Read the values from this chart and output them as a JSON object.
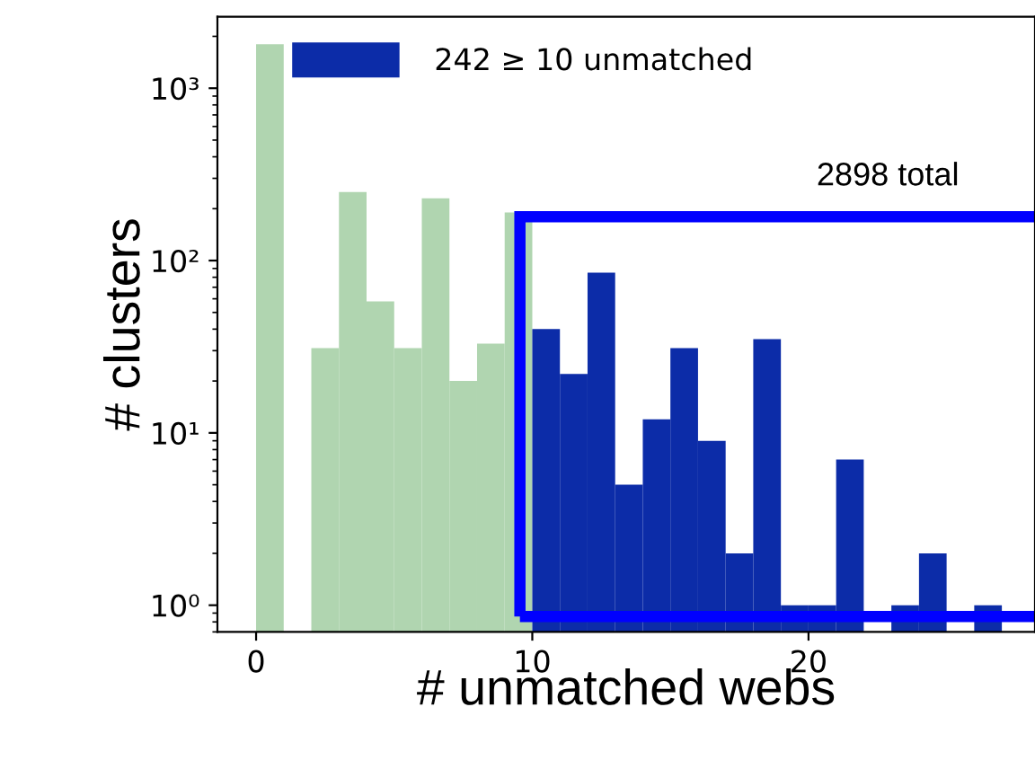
{
  "chart_data": {
    "type": "histogram",
    "xlabel": "# unmatched webs",
    "ylabel": "# clusters",
    "bins": [
      0,
      1,
      2,
      3,
      4,
      5,
      6,
      7,
      8,
      9,
      10,
      11,
      12,
      13,
      14,
      15,
      16,
      17,
      18,
      19,
      20,
      21,
      22,
      23,
      24,
      25,
      26,
      27
    ],
    "series": [
      {
        "color": "#b0d5b0",
        "values": [
          1800,
          null,
          31,
          250,
          58,
          31,
          230,
          20,
          33,
          190,
          null,
          null,
          null,
          null,
          null,
          null,
          null,
          null,
          null,
          null,
          null,
          null,
          null,
          null,
          null,
          null,
          null
        ]
      },
      {
        "name": "242 ≥ 10 unmatched",
        "color": "#0c2ca8",
        "values": [
          null,
          null,
          null,
          null,
          null,
          null,
          null,
          null,
          null,
          null,
          40,
          22,
          85,
          5,
          12,
          31,
          9,
          2,
          35,
          1,
          1,
          7,
          null,
          1,
          2,
          null,
          1
        ]
      }
    ],
    "log": "y",
    "xlim": [
      -1.4,
      28.2
    ],
    "ylim": [
      0.7,
      2600
    ],
    "xticks": [
      0,
      10,
      20
    ],
    "yticks": [
      {
        "value": 1,
        "label": "10⁰"
      },
      {
        "value": 10,
        "label": "10¹"
      },
      {
        "value": 100,
        "label": "10²"
      },
      {
        "value": 1000,
        "label": "10³"
      }
    ],
    "legend": "top left",
    "grid": false,
    "annotations": [
      "2898 total"
    ]
  }
}
